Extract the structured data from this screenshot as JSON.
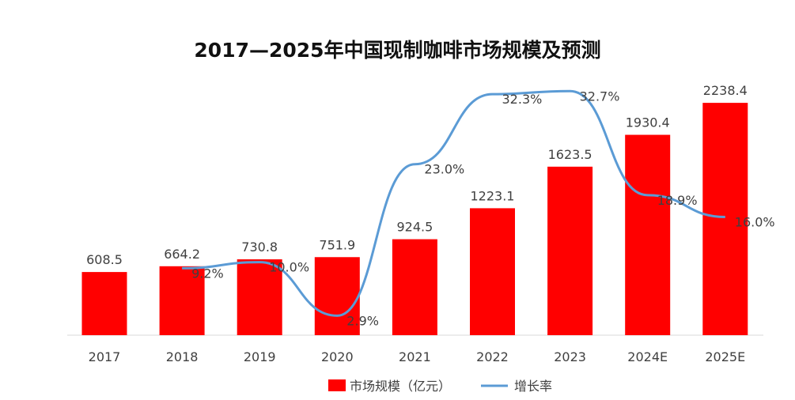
{
  "chart_data": {
    "type": "bar+line",
    "title": "2017—2025年中国现制咖啡市场规模及预测",
    "categories": [
      "2017",
      "2018",
      "2019",
      "2020",
      "2021",
      "2022",
      "2023",
      "2024E",
      "2025E"
    ],
    "series": [
      {
        "name": "市场规模（亿元）",
        "type": "bar",
        "color": "#ff0000",
        "values": [
          608.5,
          664.2,
          730.8,
          751.9,
          924.5,
          1223.1,
          1623.5,
          1930.4,
          2238.4
        ],
        "labels": [
          "608.5",
          "664.2",
          "730.8",
          "751.9",
          "924.5",
          "1223.1",
          "1623.5",
          "1930.4",
          "2238.4"
        ]
      },
      {
        "name": "增长率",
        "type": "line",
        "color": "#5b9bd5",
        "values": [
          null,
          9.2,
          10.0,
          2.9,
          23.0,
          32.3,
          32.7,
          18.9,
          16.0
        ],
        "labels": [
          "",
          "9.2%",
          "10.0%",
          "2.9%",
          "23.0%",
          "32.3%",
          "32.7%",
          "18.9%",
          "16.0%"
        ]
      }
    ],
    "ylim": [
      0,
      2620
    ],
    "y2lim": [
      0,
      36.4
    ],
    "grid": false,
    "legend": "bottom"
  }
}
